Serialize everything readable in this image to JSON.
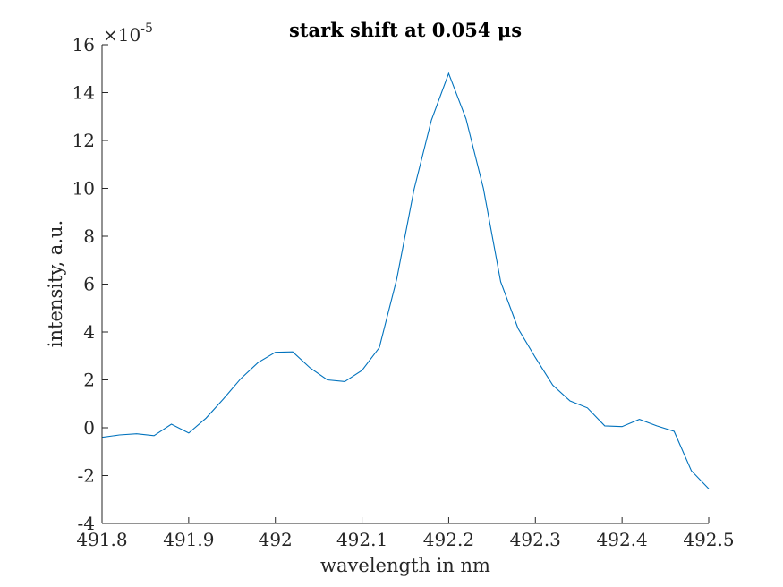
{
  "chart_data": {
    "type": "line",
    "title": "stark shift at 0.054 μs",
    "xlabel": "wavelength in nm",
    "ylabel": "intensity, a.u.",
    "exponent_base": "×10",
    "exponent_power": "-5",
    "xlim": [
      491.8,
      492.5
    ],
    "ylim": [
      -4,
      16
    ],
    "xticks": [
      491.8,
      491.9,
      492.0,
      492.1,
      492.2,
      492.3,
      492.4,
      492.5
    ],
    "xtick_labels": [
      "491.8",
      "491.9",
      "492",
      "492.1",
      "492.2",
      "492.3",
      "492.4",
      "492.5"
    ],
    "yticks": [
      -4,
      -2,
      0,
      2,
      4,
      6,
      8,
      10,
      12,
      14,
      16
    ],
    "ytick_labels": [
      "-4",
      "-2",
      "0",
      "2",
      "4",
      "6",
      "8",
      "10",
      "12",
      "14",
      "16"
    ],
    "grid": false,
    "line_color": "#0072BD",
    "series": [
      {
        "x": [
          491.8,
          491.82,
          491.84,
          491.86,
          491.88,
          491.9,
          491.92,
          491.94,
          491.96,
          491.98,
          492.0,
          492.02,
          492.04,
          492.06,
          492.08,
          492.1,
          492.12,
          492.14,
          492.16,
          492.18,
          492.2,
          492.22,
          492.24,
          492.26,
          492.28,
          492.3,
          492.32,
          492.34,
          492.36,
          492.38,
          492.4,
          492.42,
          492.44,
          492.46,
          492.48,
          492.5
        ],
        "y": [
          -0.4,
          -0.3,
          -0.25,
          -0.33,
          0.15,
          -0.22,
          0.4,
          1.2,
          2.05,
          2.72,
          3.15,
          3.17,
          2.5,
          2.0,
          1.93,
          2.4,
          3.35,
          6.2,
          9.95,
          12.85,
          14.8,
          12.9,
          10.0,
          6.1,
          4.15,
          2.93,
          1.78,
          1.12,
          0.83,
          0.08,
          0.05,
          0.35,
          0.08,
          -0.15,
          -1.8,
          -2.55
        ]
      }
    ]
  }
}
